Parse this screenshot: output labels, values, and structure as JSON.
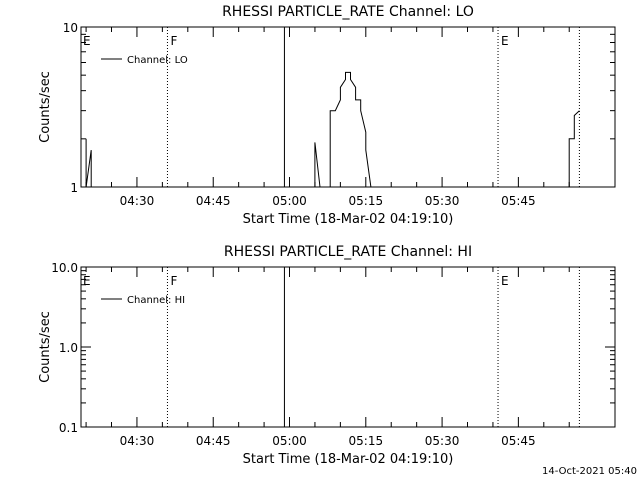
{
  "footer": {
    "timestamp": "14-Oct-2021 05:40"
  },
  "colors": {
    "background": "#ffffff",
    "foreground": "#000000"
  },
  "chart_data": [
    {
      "type": "line",
      "title": "RHESSI PARTICLE_RATE Channel: LO",
      "xlabel": "Start Time (18-Mar-02 04:19:10)",
      "ylabel": "Counts/sec",
      "y_scale": "log",
      "xlim": [
        "04:19",
        "06:04"
      ],
      "ylim": [
        1,
        10
      ],
      "y_ticks": [
        1,
        10
      ],
      "y_tick_labels": [
        "1",
        "10"
      ],
      "x_ticks": [
        "04:30",
        "04:45",
        "05:00",
        "05:15",
        "05:30",
        "05:45"
      ],
      "grid": false,
      "legend": {
        "placement": "top-left",
        "entries": [
          "Channel: LO"
        ]
      },
      "markers": [
        {
          "label": "E",
          "time": "04:19",
          "style": "none"
        },
        {
          "label": "F",
          "time": "04:36",
          "style": "dotted"
        },
        {
          "label": "",
          "time": "04:59",
          "style": "solid"
        },
        {
          "label": "E",
          "time": "05:41",
          "style": "dotted"
        },
        {
          "label": "",
          "time": "05:57",
          "style": "dotted"
        }
      ],
      "series": [
        {
          "name": "Channel: LO",
          "segments": [
            {
              "x": [
                "04:20",
                "04:20",
                "04:21",
                "04:21",
                "04:21"
              ],
              "y": [
                2.0,
                1.0,
                1.7,
                1.0,
                1.0
              ]
            },
            {
              "x": [
                "05:05",
                "05:05",
                "05:05",
                "05:06"
              ],
              "y": [
                1.0,
                1.9,
                1.9,
                1.0
              ]
            },
            {
              "x": [
                "05:08",
                "05:08",
                "05:09",
                "05:10",
                "05:10",
                "05:11",
                "05:11",
                "05:12",
                "05:12",
                "05:13",
                "05:13",
                "05:14",
                "05:14",
                "05:15",
                "05:15",
                "05:16"
              ],
              "y": [
                1.0,
                3.0,
                3.0,
                3.5,
                4.2,
                4.7,
                5.2,
                5.2,
                4.7,
                4.2,
                3.5,
                3.5,
                3.0,
                2.2,
                1.7,
                1.0
              ]
            },
            {
              "x": [
                "05:55",
                "05:55",
                "05:56",
                "05:56",
                "05:57"
              ],
              "y": [
                1.0,
                2.0,
                2.0,
                2.8,
                3.0
              ]
            }
          ]
        }
      ]
    },
    {
      "type": "line",
      "title": "RHESSI PARTICLE_RATE Channel: HI",
      "xlabel": "Start Time (18-Mar-02 04:19:10)",
      "ylabel": "Counts/sec",
      "y_scale": "log",
      "xlim": [
        "04:19",
        "06:04"
      ],
      "ylim": [
        0.1,
        10
      ],
      "y_ticks": [
        0.1,
        1,
        10
      ],
      "y_tick_labels": [
        "0.1",
        "1.0",
        "10.0"
      ],
      "x_ticks": [
        "04:30",
        "04:45",
        "05:00",
        "05:15",
        "05:30",
        "05:45"
      ],
      "grid": false,
      "legend": {
        "placement": "top-left",
        "entries": [
          "Channel: HI"
        ]
      },
      "markers": [
        {
          "label": "E",
          "time": "04:19",
          "style": "none"
        },
        {
          "label": "F",
          "time": "04:36",
          "style": "dotted"
        },
        {
          "label": "",
          "time": "04:59",
          "style": "solid"
        },
        {
          "label": "E",
          "time": "05:41",
          "style": "dotted"
        },
        {
          "label": "",
          "time": "05:57",
          "style": "dotted"
        }
      ],
      "series": [
        {
          "name": "Channel: HI",
          "segments": []
        }
      ]
    }
  ]
}
